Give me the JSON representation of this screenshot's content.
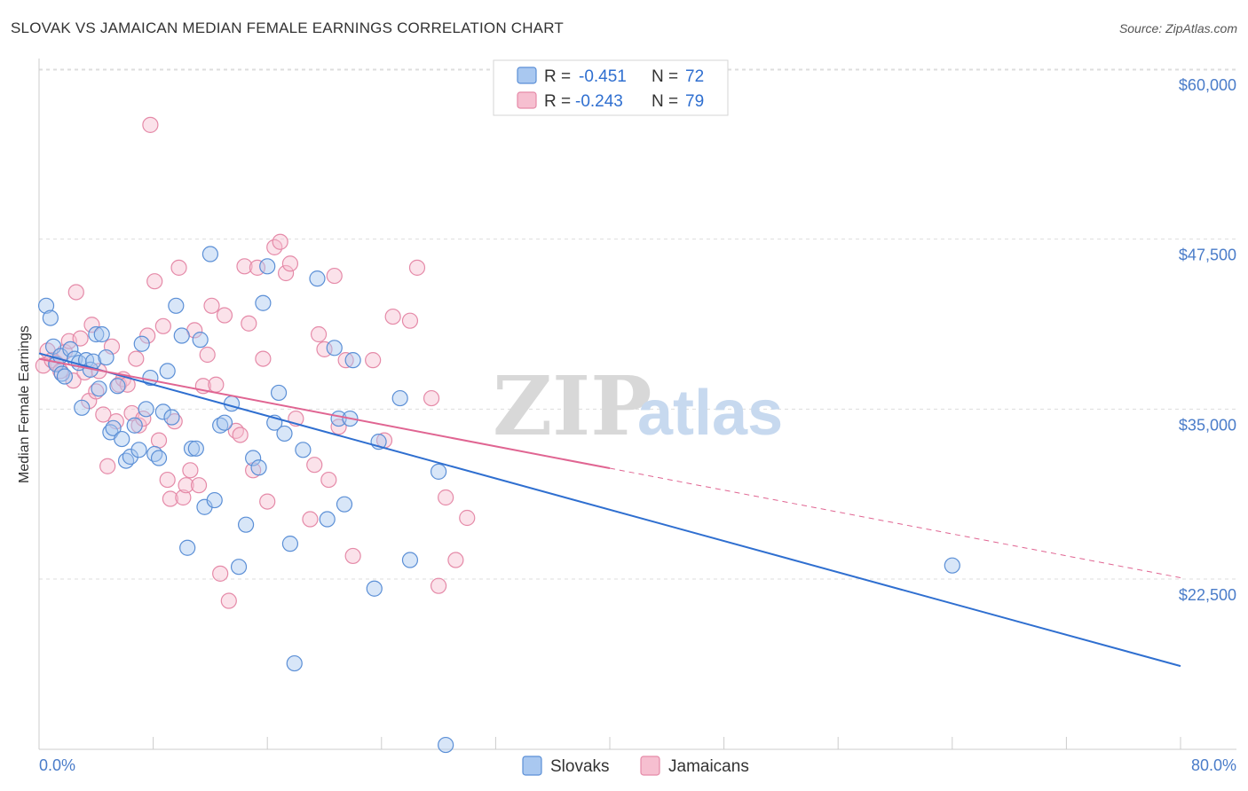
{
  "header": {
    "title": "SLOVAK VS JAMAICAN MEDIAN FEMALE EARNINGS CORRELATION CHART",
    "source": "Source: ZipAtlas.com"
  },
  "watermark": {
    "zip": "ZIP",
    "atlas": "atlas"
  },
  "colors": {
    "slovak_fill": "#a9c8f0",
    "slovak_stroke": "#5b8fd6",
    "slovak_line": "#2f6fd0",
    "jamaican_fill": "#f6bfd0",
    "jamaican_stroke": "#e58aa8",
    "jamaican_line": "#e06592",
    "axis_text": "#4a7cc9",
    "grid": "#dddddd"
  },
  "legend": {
    "rows": [
      {
        "r_label": "R =",
        "r_value": "-0.451",
        "n_label": "N =",
        "n_value": "72"
      },
      {
        "r_label": "R =",
        "r_value": "-0.243",
        "n_label": "N =",
        "n_value": "79"
      }
    ]
  },
  "bottom_legend": {
    "slovaks": "Slovaks",
    "jamaicans": "Jamaicans"
  },
  "chart_data": {
    "type": "scatter",
    "title": "SLOVAK VS JAMAICAN MEDIAN FEMALE EARNINGS CORRELATION CHART",
    "xlabel": "",
    "ylabel": "Median Female Earnings",
    "xlim": [
      0,
      80
    ],
    "ylim": [
      12000,
      62000
    ],
    "x_ticks": [
      "0.0%",
      "80.0%"
    ],
    "y_ticks": [
      {
        "value": 22500,
        "label": "$22,500"
      },
      {
        "value": 35000,
        "label": "$35,000"
      },
      {
        "value": 47500,
        "label": "$47,500"
      },
      {
        "value": 60000,
        "label": "$60,000"
      }
    ],
    "grid": true,
    "legend_position": "top-center",
    "series": [
      {
        "name": "Slovaks",
        "r": -0.451,
        "n": 72,
        "trend": {
          "x": [
            0,
            80
          ],
          "y": [
            39100,
            16100
          ],
          "dashed_from": null
        },
        "points": [
          [
            0.5,
            42600
          ],
          [
            0.8,
            41700
          ],
          [
            1.0,
            39600
          ],
          [
            1.2,
            38300
          ],
          [
            1.5,
            38900
          ],
          [
            1.6,
            37600
          ],
          [
            1.8,
            37400
          ],
          [
            2.2,
            39400
          ],
          [
            2.5,
            38700
          ],
          [
            2.8,
            38400
          ],
          [
            3.0,
            35100
          ],
          [
            3.3,
            38600
          ],
          [
            3.6,
            37900
          ],
          [
            3.8,
            38500
          ],
          [
            4.0,
            40500
          ],
          [
            4.2,
            36500
          ],
          [
            4.4,
            40500
          ],
          [
            4.7,
            38800
          ],
          [
            5.0,
            33300
          ],
          [
            5.2,
            33600
          ],
          [
            5.5,
            36700
          ],
          [
            5.8,
            32800
          ],
          [
            6.1,
            31200
          ],
          [
            6.4,
            31500
          ],
          [
            6.7,
            33800
          ],
          [
            7.0,
            32000
          ],
          [
            7.2,
            39800
          ],
          [
            7.5,
            35000
          ],
          [
            7.8,
            37300
          ],
          [
            8.1,
            31700
          ],
          [
            8.4,
            31400
          ],
          [
            8.7,
            34800
          ],
          [
            9.0,
            37800
          ],
          [
            9.3,
            34400
          ],
          [
            9.6,
            42600
          ],
          [
            10.0,
            40400
          ],
          [
            10.4,
            24800
          ],
          [
            10.7,
            32100
          ],
          [
            11.0,
            32100
          ],
          [
            11.3,
            40100
          ],
          [
            11.6,
            27800
          ],
          [
            12.0,
            46400
          ],
          [
            12.3,
            28300
          ],
          [
            12.7,
            33800
          ],
          [
            13.0,
            34000
          ],
          [
            13.5,
            35400
          ],
          [
            14.0,
            23400
          ],
          [
            14.5,
            26500
          ],
          [
            15.0,
            31400
          ],
          [
            15.4,
            30700
          ],
          [
            15.7,
            42800
          ],
          [
            16.0,
            45500
          ],
          [
            16.5,
            34000
          ],
          [
            16.8,
            36200
          ],
          [
            17.2,
            33200
          ],
          [
            17.6,
            25100
          ],
          [
            17.9,
            16300
          ],
          [
            18.5,
            32000
          ],
          [
            19.5,
            44600
          ],
          [
            20.2,
            26900
          ],
          [
            20.7,
            39500
          ],
          [
            21.0,
            34300
          ],
          [
            21.4,
            28000
          ],
          [
            21.8,
            34300
          ],
          [
            22.0,
            38600
          ],
          [
            23.5,
            21800
          ],
          [
            23.8,
            32600
          ],
          [
            25.3,
            35800
          ],
          [
            26.0,
            23900
          ],
          [
            28.0,
            30400
          ],
          [
            28.5,
            10300
          ],
          [
            64.0,
            23500
          ]
        ]
      },
      {
        "name": "Jamaicans",
        "r": -0.243,
        "n": 79,
        "trend": {
          "x": [
            0,
            80
          ],
          "y": [
            38700,
            22600
          ],
          "dashed_from": 40
        },
        "points": [
          [
            0.3,
            38200
          ],
          [
            0.6,
            39300
          ],
          [
            0.9,
            38600
          ],
          [
            1.2,
            38400
          ],
          [
            1.5,
            37800
          ],
          [
            1.8,
            39200
          ],
          [
            2.1,
            40000
          ],
          [
            2.4,
            37100
          ],
          [
            2.6,
            43600
          ],
          [
            2.9,
            40200
          ],
          [
            3.2,
            37700
          ],
          [
            3.5,
            35600
          ],
          [
            3.7,
            41200
          ],
          [
            4.0,
            36300
          ],
          [
            4.2,
            37800
          ],
          [
            4.5,
            34600
          ],
          [
            4.8,
            30800
          ],
          [
            5.1,
            39600
          ],
          [
            5.4,
            34100
          ],
          [
            5.6,
            36800
          ],
          [
            5.9,
            37200
          ],
          [
            6.2,
            36800
          ],
          [
            6.5,
            34700
          ],
          [
            6.8,
            38700
          ],
          [
            7.0,
            33800
          ],
          [
            7.3,
            34300
          ],
          [
            7.6,
            40400
          ],
          [
            7.8,
            55900
          ],
          [
            8.1,
            44400
          ],
          [
            8.4,
            32700
          ],
          [
            8.7,
            41100
          ],
          [
            9.0,
            29800
          ],
          [
            9.2,
            28400
          ],
          [
            9.5,
            34100
          ],
          [
            9.8,
            45400
          ],
          [
            10.1,
            28500
          ],
          [
            10.3,
            29400
          ],
          [
            10.6,
            30500
          ],
          [
            10.9,
            40800
          ],
          [
            11.2,
            29400
          ],
          [
            11.5,
            36700
          ],
          [
            11.8,
            39000
          ],
          [
            12.1,
            42600
          ],
          [
            12.4,
            36800
          ],
          [
            12.7,
            22900
          ],
          [
            13.0,
            41900
          ],
          [
            13.3,
            20900
          ],
          [
            13.8,
            33400
          ],
          [
            14.1,
            33100
          ],
          [
            14.4,
            45500
          ],
          [
            14.7,
            41300
          ],
          [
            15.0,
            30500
          ],
          [
            15.3,
            45400
          ],
          [
            15.7,
            38700
          ],
          [
            16.0,
            28200
          ],
          [
            16.5,
            46900
          ],
          [
            16.9,
            47300
          ],
          [
            17.3,
            45000
          ],
          [
            17.6,
            45700
          ],
          [
            18.0,
            34300
          ],
          [
            19.0,
            26900
          ],
          [
            19.3,
            30900
          ],
          [
            19.6,
            40500
          ],
          [
            20.0,
            39400
          ],
          [
            20.3,
            29800
          ],
          [
            20.7,
            44800
          ],
          [
            21.0,
            33700
          ],
          [
            21.5,
            38600
          ],
          [
            22.0,
            24200
          ],
          [
            23.4,
            38600
          ],
          [
            24.2,
            32700
          ],
          [
            26.5,
            45400
          ],
          [
            27.5,
            35800
          ],
          [
            28.0,
            22000
          ],
          [
            28.5,
            28500
          ],
          [
            29.2,
            23900
          ],
          [
            30.0,
            27000
          ],
          [
            26.0,
            41500
          ],
          [
            24.8,
            41800
          ]
        ]
      }
    ]
  }
}
